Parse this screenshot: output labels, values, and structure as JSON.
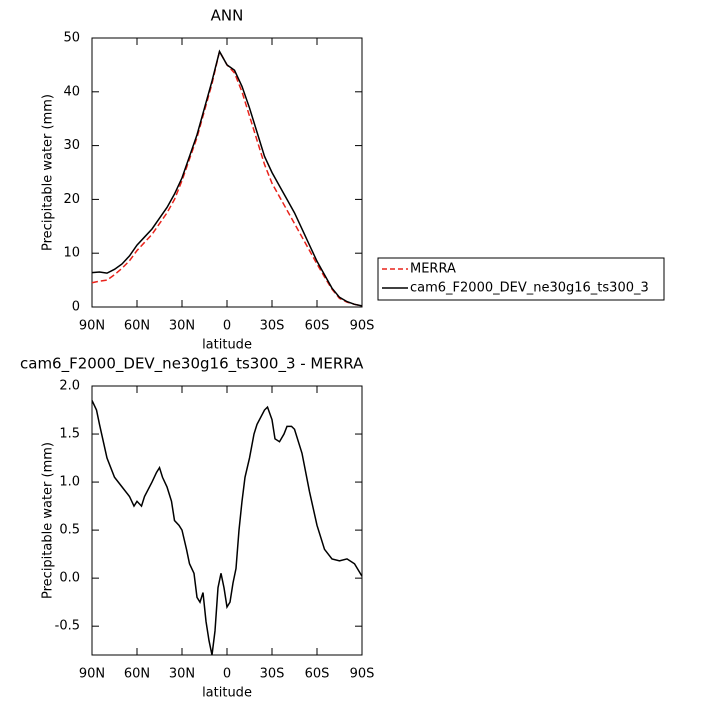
{
  "chart_data": [
    {
      "type": "line",
      "title": "ANN",
      "xlabel": "latitude",
      "ylabel": "Precipitable water (mm)",
      "xlim": [
        90,
        -90
      ],
      "xticks": [
        {
          "value": 90,
          "label": "90N"
        },
        {
          "value": 60,
          "label": "60N"
        },
        {
          "value": 30,
          "label": "30N"
        },
        0,
        {
          "value": -30,
          "label": "30S"
        },
        {
          "value": -60,
          "label": "60S"
        },
        {
          "value": -90,
          "label": "90S"
        }
      ],
      "ylim": [
        0,
        50
      ],
      "yticks": [
        0,
        10,
        20,
        30,
        40,
        50
      ],
      "x": [
        90,
        85,
        80,
        75,
        70,
        65,
        60,
        55,
        50,
        45,
        40,
        35,
        30,
        25,
        20,
        15,
        10,
        5,
        0,
        -5,
        -10,
        -15,
        -20,
        -25,
        -30,
        -35,
        -40,
        -45,
        -50,
        -55,
        -60,
        -65,
        -70,
        -75,
        -80,
        -85,
        -90
      ],
      "legend": "right",
      "series": [
        {
          "name": "MERRA",
          "color": "#e8231b",
          "dash": true,
          "values": [
            4.5,
            4.8,
            5,
            6,
            7.2,
            8.6,
            10.5,
            12,
            13.5,
            15.5,
            17.5,
            20,
            23.5,
            27.5,
            31.5,
            36.5,
            41.5,
            47.5,
            45,
            43.5,
            40,
            35.5,
            31,
            26.5,
            23,
            20.5,
            18,
            15.5,
            13,
            10.5,
            8,
            5.6,
            3.3,
            1.6,
            0.9,
            0.5,
            0.2
          ]
        },
        {
          "name": "cam6_F2000_DEV_ne30g16_ts300_3",
          "color": "#000000",
          "dash": false,
          "values": [
            6.4,
            6.5,
            6.3,
            7,
            8,
            9.5,
            11.5,
            13,
            14.5,
            16.5,
            18.5,
            21,
            24,
            28,
            32,
            37,
            42,
            47.5,
            45,
            44,
            41,
            37,
            32.5,
            28,
            25,
            22.5,
            20,
            17.5,
            14.5,
            11.5,
            8.5,
            6,
            3.5,
            1.8,
            1,
            0.5,
            0.2
          ]
        }
      ]
    },
    {
      "type": "line",
      "title": "cam6_F2000_DEV_ne30g16_ts300_3 - MERRA",
      "xlabel": "latitude",
      "ylabel": "Precipitable water (mm)",
      "xlim": [
        90,
        -90
      ],
      "xticks": [
        {
          "value": 90,
          "label": "90N"
        },
        {
          "value": 60,
          "label": "60N"
        },
        {
          "value": 30,
          "label": "30N"
        },
        0,
        {
          "value": -30,
          "label": "30S"
        },
        {
          "value": -60,
          "label": "60S"
        },
        {
          "value": -90,
          "label": "90S"
        }
      ],
      "ylim": [
        -0.8,
        2.0
      ],
      "yticks": [
        {
          "value": 2,
          "label": "2.0"
        },
        1.5,
        {
          "value": 1,
          "label": "1.0"
        },
        0.5,
        {
          "value": 0,
          "label": "0.0"
        },
        -0.5
      ],
      "x": [
        90,
        87,
        85,
        80,
        75,
        70,
        65,
        62,
        60,
        57,
        55,
        50,
        47,
        45,
        43,
        40,
        37,
        35,
        32,
        30,
        27,
        25,
        22,
        20,
        18,
        16,
        14,
        12,
        10,
        8,
        6,
        4,
        2,
        0,
        -2,
        -4,
        -6,
        -8,
        -10,
        -12,
        -15,
        -18,
        -20,
        -25,
        -27,
        -30,
        -32,
        -35,
        -38,
        -40,
        -43,
        -45,
        -50,
        -55,
        -60,
        -65,
        -70,
        -75,
        -80,
        -85,
        -90
      ],
      "series": [
        {
          "color": "#000000",
          "values": [
            1.85,
            1.75,
            1.6,
            1.25,
            1.05,
            0.95,
            0.85,
            0.75,
            0.8,
            0.75,
            0.85,
            1.0,
            1.1,
            1.15,
            1.05,
            0.95,
            0.8,
            0.6,
            0.55,
            0.5,
            0.3,
            0.15,
            0.05,
            -0.2,
            -0.25,
            -0.15,
            -0.45,
            -0.65,
            -0.8,
            -0.55,
            -0.1,
            0.05,
            -0.1,
            -0.3,
            -0.25,
            -0.05,
            0.1,
            0.5,
            0.8,
            1.05,
            1.25,
            1.5,
            1.6,
            1.75,
            1.78,
            1.65,
            1.45,
            1.42,
            1.5,
            1.58,
            1.58,
            1.55,
            1.3,
            0.9,
            0.55,
            0.3,
            0.2,
            0.18,
            0.2,
            0.15,
            0.02
          ]
        }
      ]
    }
  ]
}
